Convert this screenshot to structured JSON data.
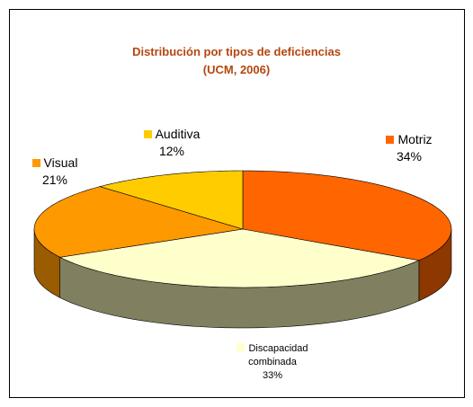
{
  "chart_data": {
    "type": "pie3d",
    "title": "Distribución por tipos de deficiencias",
    "subtitle": "(UCM, 2006)",
    "categories": [
      "Motriz",
      "Discapacidad combinada",
      "Visual",
      "Auditiva"
    ],
    "values": [
      34,
      33,
      21,
      12
    ],
    "value_labels": [
      "34%",
      "33%",
      "21%",
      "12%"
    ],
    "colors": [
      "#ff6600",
      "#ffffcc",
      "#ff9900",
      "#ffcc00"
    ]
  }
}
